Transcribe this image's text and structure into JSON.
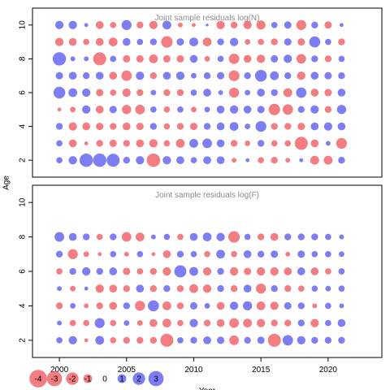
{
  "colors": {
    "negative": "#f0464b",
    "positive": "#4646f0",
    "axis": "#000000",
    "panel_title": "#8c8c8c"
  },
  "chart_data": {
    "type": "bubble",
    "xlabel": "Year",
    "ylabel": "Age",
    "xlim": [
      1998,
      2024
    ],
    "x_ticks": [
      "2000",
      "2005",
      "2010",
      "2015",
      "2020"
    ],
    "years": [
      2000,
      2001,
      2002,
      2003,
      2004,
      2005,
      2006,
      2007,
      2008,
      2009,
      2010,
      2011,
      2012,
      2013,
      2014,
      2015,
      2016,
      2017,
      2018,
      2019,
      2020,
      2021
    ],
    "panels": [
      {
        "title": "Joint sample residuals log(N)",
        "ylim": [
          1,
          11
        ],
        "y_ticks": [
          "2",
          "4",
          "6",
          "8",
          "10"
        ],
        "ages": [
          2,
          3,
          4,
          5,
          6,
          7,
          8,
          9,
          10
        ],
        "residuals": [
          [
            0.5,
            0.9,
            2.3,
            2.3,
            2.2,
            0.6,
            0.9,
            -2.3,
            0.9,
            0.8,
            0.5,
            0.8,
            0.8,
            -0.3,
            0.2,
            -0.5,
            -0.6,
            -0.3,
            0.2,
            -1.0,
            -1.0,
            0.6
          ],
          [
            0.5,
            -0.8,
            -0.2,
            -0.6,
            -0.7,
            -0.6,
            -0.8,
            -0.9,
            -0.5,
            -1.0,
            1.0,
            1.2,
            0.8,
            -0.6,
            -0.4,
            0.6,
            -0.5,
            -0.5,
            -2.2,
            -0.8,
            0.3,
            -1.5
          ],
          [
            0.6,
            -0.9,
            -0.8,
            -0.7,
            -0.6,
            -0.8,
            -0.7,
            0.6,
            -0.5,
            -0.6,
            -0.7,
            0.6,
            0.8,
            1.0,
            0.4,
            1.5,
            -0.6,
            -0.6,
            -0.7,
            0.8,
            0.9,
            0.8
          ],
          [
            -0.2,
            -0.4,
            0.9,
            -0.8,
            0.7,
            -1.1,
            -1.2,
            0.5,
            -0.5,
            0.5,
            -0.4,
            0.4,
            0.8,
            0.9,
            0.8,
            0.7,
            -1.7,
            -1.4,
            0.6,
            0.9,
            -0.6,
            1.1
          ],
          [
            1.8,
            1.0,
            0.9,
            -0.7,
            -0.5,
            -0.9,
            -0.6,
            0.4,
            -0.6,
            -0.6,
            0.5,
            0.8,
            0.3,
            -1.3,
            0.4,
            0.8,
            0.6,
            -1.0,
            1.4,
            -0.8,
            -0.7,
            0.8
          ],
          [
            0.7,
            0.8,
            0.6,
            0.8,
            -0.8,
            -1.4,
            0.9,
            -0.6,
            0.8,
            0.9,
            0.4,
            0.6,
            0.7,
            -1.5,
            0.6,
            1.8,
            1.0,
            0.6,
            -0.9,
            0.8,
            0.7,
            0.6
          ],
          [
            2.3,
            0.3,
            0.3,
            -2.2,
            0.5,
            -0.7,
            -0.7,
            -1.0,
            -0.7,
            -0.7,
            0.8,
            -0.4,
            0.5,
            -1.4,
            -0.8,
            -0.9,
            0.7,
            0.9,
            -1.2,
            0.6,
            -0.6,
            0.5
          ],
          [
            -0.9,
            -0.8,
            -0.5,
            -0.8,
            -1.0,
            0.8,
            0.5,
            0.6,
            -1.7,
            0.7,
            1.0,
            -1.0,
            0.6,
            0.9,
            -0.4,
            -0.5,
            -0.6,
            0.7,
            -0.7,
            1.6,
            0.5,
            -0.6
          ],
          [
            0.9,
            0.9,
            0.2,
            -0.8,
            -0.5,
            1.3,
            -0.6,
            -0.9,
            1.0,
            -0.3,
            -0.2,
            0.1,
            -0.9,
            -0.6,
            -0.9,
            -1.1,
            0.5,
            0.7,
            -1.3,
            0.6,
            -0.7,
            0.2
          ]
        ]
      },
      {
        "title": "Joint sample residuals log(F)",
        "ylim": [
          1,
          11
        ],
        "y_ticks": [
          "2",
          "4",
          "6",
          "8",
          "10"
        ],
        "ages": [
          2,
          3,
          4,
          5,
          6,
          7,
          8
        ],
        "residuals": [
          [
            0.5,
            0.9,
            -0.2,
            1.0,
            -0.5,
            -0.6,
            -0.6,
            -0.6,
            -2.2,
            0.5,
            0.6,
            0.8,
            0.7,
            -1.2,
            0.6,
            0.7,
            -2.2,
            1.4,
            0.9,
            0.6,
            0.6,
            0.6
          ],
          [
            0.3,
            -0.5,
            -0.5,
            1.3,
            -0.5,
            0.4,
            -0.4,
            -0.8,
            -1.0,
            -0.5,
            0.9,
            -0.6,
            -0.8,
            -1.2,
            -1.0,
            -0.9,
            -0.6,
            -0.6,
            0.6,
            -0.9,
            0.5,
            0.8
          ],
          [
            -0.6,
            0.4,
            -0.3,
            -0.6,
            -0.8,
            0.6,
            -1.3,
            1.6,
            -1.0,
            -0.6,
            0.7,
            0.4,
            -0.8,
            0.9,
            1.1,
            -1.0,
            -0.9,
            0.7,
            0.6,
            -0.3,
            0.5,
            0.3
          ],
          [
            0.3,
            -0.4,
            0.2,
            -0.9,
            -0.8,
            -0.6,
            0.8,
            -0.6,
            0.6,
            -0.6,
            -1.0,
            -0.9,
            0.6,
            -0.6,
            0.8,
            -1.3,
            0.6,
            -0.6,
            -0.5,
            0.5,
            0.4,
            0.5
          ],
          [
            -0.5,
            0.6,
            0.9,
            0.6,
            0.8,
            -0.7,
            -0.5,
            -0.6,
            -0.9,
            1.9,
            1.0,
            -0.9,
            0.6,
            -0.9,
            -0.7,
            -0.9,
            -0.9,
            -0.8,
            0.8,
            -0.8,
            -0.5,
            0.5
          ],
          [
            0.6,
            -1.3,
            -0.4,
            -0.2,
            0.5,
            -0.3,
            0.5,
            -0.2,
            -0.8,
            0.6,
            0.5,
            -0.5,
            1.0,
            -0.5,
            0.8,
            0.6,
            0.7,
            -0.3,
            0.7,
            0.5,
            0.5,
            0.4
          ],
          [
            1.2,
            0.8,
            0.6,
            -0.5,
            0.6,
            -1.2,
            -1.0,
            0.3,
            0.5,
            -0.5,
            0.8,
            1.0,
            0.9,
            -1.7,
            0.5,
            -0.6,
            -0.8,
            0.6,
            0.6,
            0.6,
            0.5,
            0.3
          ]
        ]
      }
    ],
    "legend": {
      "placement": "bottom-left",
      "labels": [
        "-4",
        "-3",
        "-2",
        "-1",
        "0",
        "1",
        "2",
        "3"
      ],
      "values": [
        -4,
        -3,
        -2,
        -1,
        0,
        1,
        2,
        3
      ]
    }
  }
}
